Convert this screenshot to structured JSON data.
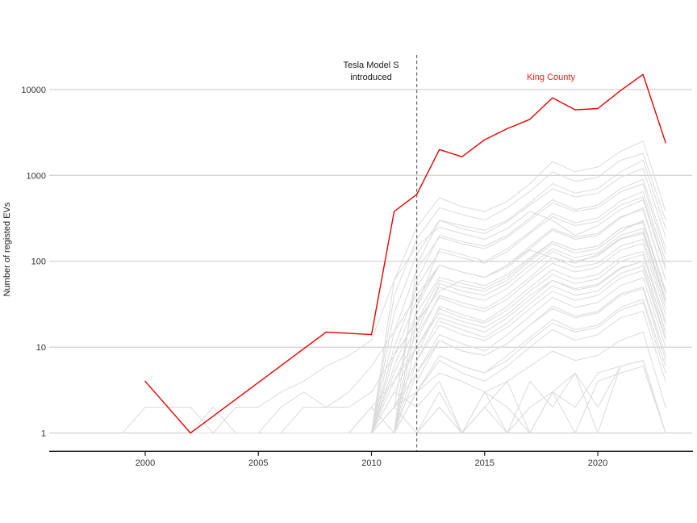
{
  "figure": {
    "y_axis_title": "Number of registed EVs",
    "annotations": {
      "event_line1": "Tesla Model S",
      "event_line2": "introduced",
      "highlight_label": "King County"
    },
    "colors": {
      "background": "#FFFFFF",
      "highlight_line": "#E60000",
      "highlight_label": "#FF1A1A",
      "other_lines": "#DBDBDB",
      "gridline": "#C6C6C6",
      "axis_line": "#1A1A1A",
      "axis_text": "#333333",
      "dashed_event_line": "#666666"
    }
  },
  "chart_data": {
    "type": "line",
    "title": "",
    "xlabel": "",
    "ylabel": "Number of registed EVs",
    "x_scale": "linear",
    "y_scale": "log10",
    "grid": "horizontal-only",
    "legend": "none (direct red label on chart)",
    "x_ticks": [
      "2000",
      "2005",
      "2010",
      "2015",
      "2020"
    ],
    "x_tick_values": [
      2000,
      2005,
      2010,
      2015,
      2020
    ],
    "y_ticks": [
      "1",
      "10",
      "100",
      "1000",
      "10000"
    ],
    "y_tick_values": [
      1,
      10,
      100,
      1000,
      10000
    ],
    "xlim": [
      1995.8,
      2024.2
    ],
    "ylim": [
      1,
      20000
    ],
    "event_line": {
      "x": 2012,
      "style": "dashed",
      "label": "Tesla Model S introduced"
    },
    "highlight_series": {
      "name": "King County",
      "points": [
        [
          2000,
          4
        ],
        [
          2002,
          1
        ],
        [
          2008,
          15
        ],
        [
          2010,
          14
        ],
        [
          2011,
          380
        ],
        [
          2012,
          600
        ],
        [
          2013,
          2000
        ],
        [
          2014,
          1650
        ],
        [
          2015,
          2600
        ],
        [
          2016,
          3500
        ],
        [
          2017,
          4500
        ],
        [
          2018,
          8000
        ],
        [
          2019,
          5800
        ],
        [
          2020,
          6000
        ],
        [
          2021,
          9700
        ],
        [
          2022,
          15000
        ],
        [
          2023,
          2400
        ]
      ]
    },
    "other_series": [
      {
        "name": "other-01",
        "start": 2010,
        "values": [
          1,
          60,
          250,
          550,
          430,
          380,
          500,
          800,
          1450,
          1100,
          1250,
          1900,
          2500,
          380
        ]
      },
      {
        "name": "other-02",
        "start": 2010,
        "values": [
          1,
          40,
          180,
          420,
          350,
          300,
          420,
          650,
          1100,
          850,
          950,
          1500,
          1800,
          300
        ]
      },
      {
        "name": "other-03",
        "start": 2011,
        "values": [
          1,
          90,
          300,
          260,
          230,
          300,
          480,
          800,
          620,
          700,
          1100,
          1500,
          240
        ]
      },
      {
        "name": "other-04",
        "start": 2010,
        "values": [
          1,
          25,
          120,
          300,
          240,
          210,
          290,
          450,
          700,
          560,
          620,
          950,
          1200,
          190
        ]
      },
      {
        "name": "other-05",
        "start": 2011,
        "values": [
          2,
          60,
          200,
          170,
          150,
          200,
          320,
          520,
          400,
          450,
          700,
          900,
          140
        ]
      },
      {
        "name": "other-06",
        "start": 2010,
        "values": [
          1,
          15,
          80,
          190,
          160,
          140,
          190,
          300,
          480,
          380,
          420,
          640,
          800,
          120
        ]
      },
      {
        "name": "other-07",
        "start": 2012,
        "values": [
          30,
          140,
          120,
          100,
          140,
          220,
          360,
          280,
          320,
          500,
          650,
          100
        ]
      },
      {
        "name": "other-08",
        "start": 2010,
        "values": [
          1,
          10,
          50,
          130,
          110,
          95,
          130,
          210,
          330,
          260,
          290,
          450,
          560,
          85
        ]
      },
      {
        "name": "other-09",
        "start": 2011,
        "values": [
          1,
          30,
          90,
          75,
          65,
          90,
          140,
          230,
          180,
          200,
          320,
          420,
          60
        ]
      },
      {
        "name": "other-10",
        "start": 2002,
        "values": [
          1,
          1,
          2,
          2,
          3,
          4,
          6,
          8,
          12,
          60,
          150,
          250,
          210,
          180,
          240,
          380,
          300,
          200,
          260,
          400,
          520,
          80
        ]
      },
      {
        "name": "other-11",
        "start": 2010,
        "values": [
          1,
          8,
          35,
          90,
          75,
          65,
          90,
          150,
          240,
          190,
          210,
          330,
          400,
          60
        ]
      },
      {
        "name": "other-12",
        "start": 2011,
        "values": [
          1,
          20,
          60,
          50,
          45,
          60,
          100,
          160,
          125,
          140,
          220,
          300,
          45
        ]
      },
      {
        "name": "other-13",
        "start": 2010,
        "values": [
          1,
          6,
          25,
          65,
          55,
          48,
          65,
          105,
          170,
          135,
          150,
          240,
          280,
          42
        ]
      },
      {
        "name": "other-14",
        "start": 2012,
        "values": [
          15,
          55,
          45,
          40,
          55,
          90,
          140,
          110,
          125,
          200,
          240,
          36
        ]
      },
      {
        "name": "other-15",
        "start": 2004,
        "values": [
          1,
          1,
          1,
          2,
          2,
          2,
          3,
          8,
          20,
          45,
          60,
          52,
          70,
          110,
          170,
          135,
          150,
          240,
          290,
          45
        ]
      },
      {
        "name": "other-16",
        "start": 2010,
        "values": [
          1,
          5,
          18,
          50,
          40,
          35,
          48,
          80,
          130,
          100,
          115,
          180,
          210,
          32
        ]
      },
      {
        "name": "other-17",
        "start": 2011,
        "values": [
          1,
          12,
          40,
          33,
          28,
          40,
          65,
          110,
          85,
          95,
          150,
          180,
          28
        ]
      },
      {
        "name": "other-18",
        "start": 2010,
        "values": [
          1,
          4,
          14,
          38,
          30,
          26,
          36,
          60,
          95,
          75,
          85,
          135,
          160,
          24
        ]
      },
      {
        "name": "other-19",
        "start": 2012,
        "values": [
          8,
          30,
          24,
          20,
          30,
          50,
          80,
          62,
          70,
          110,
          130,
          20
        ]
      },
      {
        "name": "other-20",
        "start": 2010,
        "values": [
          1,
          3,
          10,
          28,
          22,
          19,
          27,
          45,
          70,
          55,
          62,
          100,
          120,
          18
        ]
      },
      {
        "name": "other-21",
        "start": 2011,
        "values": [
          1,
          7,
          22,
          18,
          15,
          22,
          36,
          60,
          46,
          52,
          82,
          100,
          15
        ]
      },
      {
        "name": "other-22",
        "start": 2013,
        "values": [
          20,
          16,
          13,
          19,
          32,
          52,
          40,
          45,
          72,
          88,
          13
        ]
      },
      {
        "name": "other-23",
        "start": 2010,
        "values": [
          1,
          2,
          7,
          18,
          14,
          12,
          17,
          28,
          45,
          35,
          40,
          64,
          78,
          12
        ]
      },
      {
        "name": "other-24",
        "start": 2011,
        "values": [
          1,
          5,
          14,
          11,
          9,
          14,
          23,
          38,
          29,
          33,
          52,
          64,
          10
        ]
      },
      {
        "name": "other-25",
        "start": 2008,
        "values": [
          1,
          1,
          2,
          4,
          10,
          25,
          20,
          17,
          24,
          40,
          60,
          48,
          54,
          84,
          100,
          15
        ]
      },
      {
        "name": "other-26",
        "start": 2012,
        "values": [
          4,
          12,
          9,
          8,
          11,
          18,
          30,
          23,
          26,
          42,
          50,
          8
        ]
      },
      {
        "name": "other-27",
        "start": 2010,
        "values": [
          1,
          2,
          5,
          12,
          9,
          8,
          11,
          18,
          28,
          22,
          25,
          40,
          48,
          7
        ]
      },
      {
        "name": "other-28",
        "start": 2011,
        "values": [
          1,
          3,
          8,
          6,
          5,
          8,
          13,
          21,
          16,
          18,
          29,
          36,
          6
        ]
      },
      {
        "name": "other-29",
        "start": 2013,
        "values": [
          8,
          6,
          5,
          7,
          12,
          19,
          15,
          17,
          27,
          33,
          5
        ]
      },
      {
        "name": "other-30",
        "start": 2010,
        "values": [
          1,
          1,
          3,
          7,
          5,
          4,
          6,
          10,
          16,
          12,
          14,
          22,
          26,
          4
        ]
      },
      {
        "name": "other-31",
        "start": 2010,
        "values": [
          1,
          3,
          2,
          4,
          1,
          3,
          1,
          4,
          2,
          5,
          1,
          6,
          7,
          1
        ]
      },
      {
        "name": "other-32",
        "start": 2011,
        "values": [
          2,
          1,
          3,
          1,
          2,
          4,
          1,
          3,
          5,
          2,
          6,
          7,
          1
        ]
      },
      {
        "name": "other-33",
        "start": 2012,
        "values": [
          1,
          2,
          1,
          3,
          2,
          1,
          3,
          1,
          4,
          5,
          6,
          1
        ]
      },
      {
        "name": "other-34",
        "start": 2009,
        "values": [
          1,
          2,
          1,
          1,
          2,
          1,
          2,
          1,
          2,
          3,
          2,
          5,
          6,
          7,
          1
        ]
      },
      {
        "name": "other-35",
        "start": 1999,
        "values": [
          1,
          2,
          2,
          2,
          1,
          1,
          1,
          1,
          1,
          1,
          1,
          1,
          2,
          3,
          5,
          4,
          3,
          4,
          6,
          9,
          7,
          8,
          12,
          15,
          2
        ]
      },
      {
        "name": "other-36",
        "start": 2002,
        "values": [
          1,
          2,
          1,
          1,
          2,
          3,
          2,
          3,
          6,
          15,
          40,
          90,
          75,
          65,
          85,
          135,
          110,
          95,
          120,
          185,
          220,
          35
        ]
      }
    ]
  }
}
